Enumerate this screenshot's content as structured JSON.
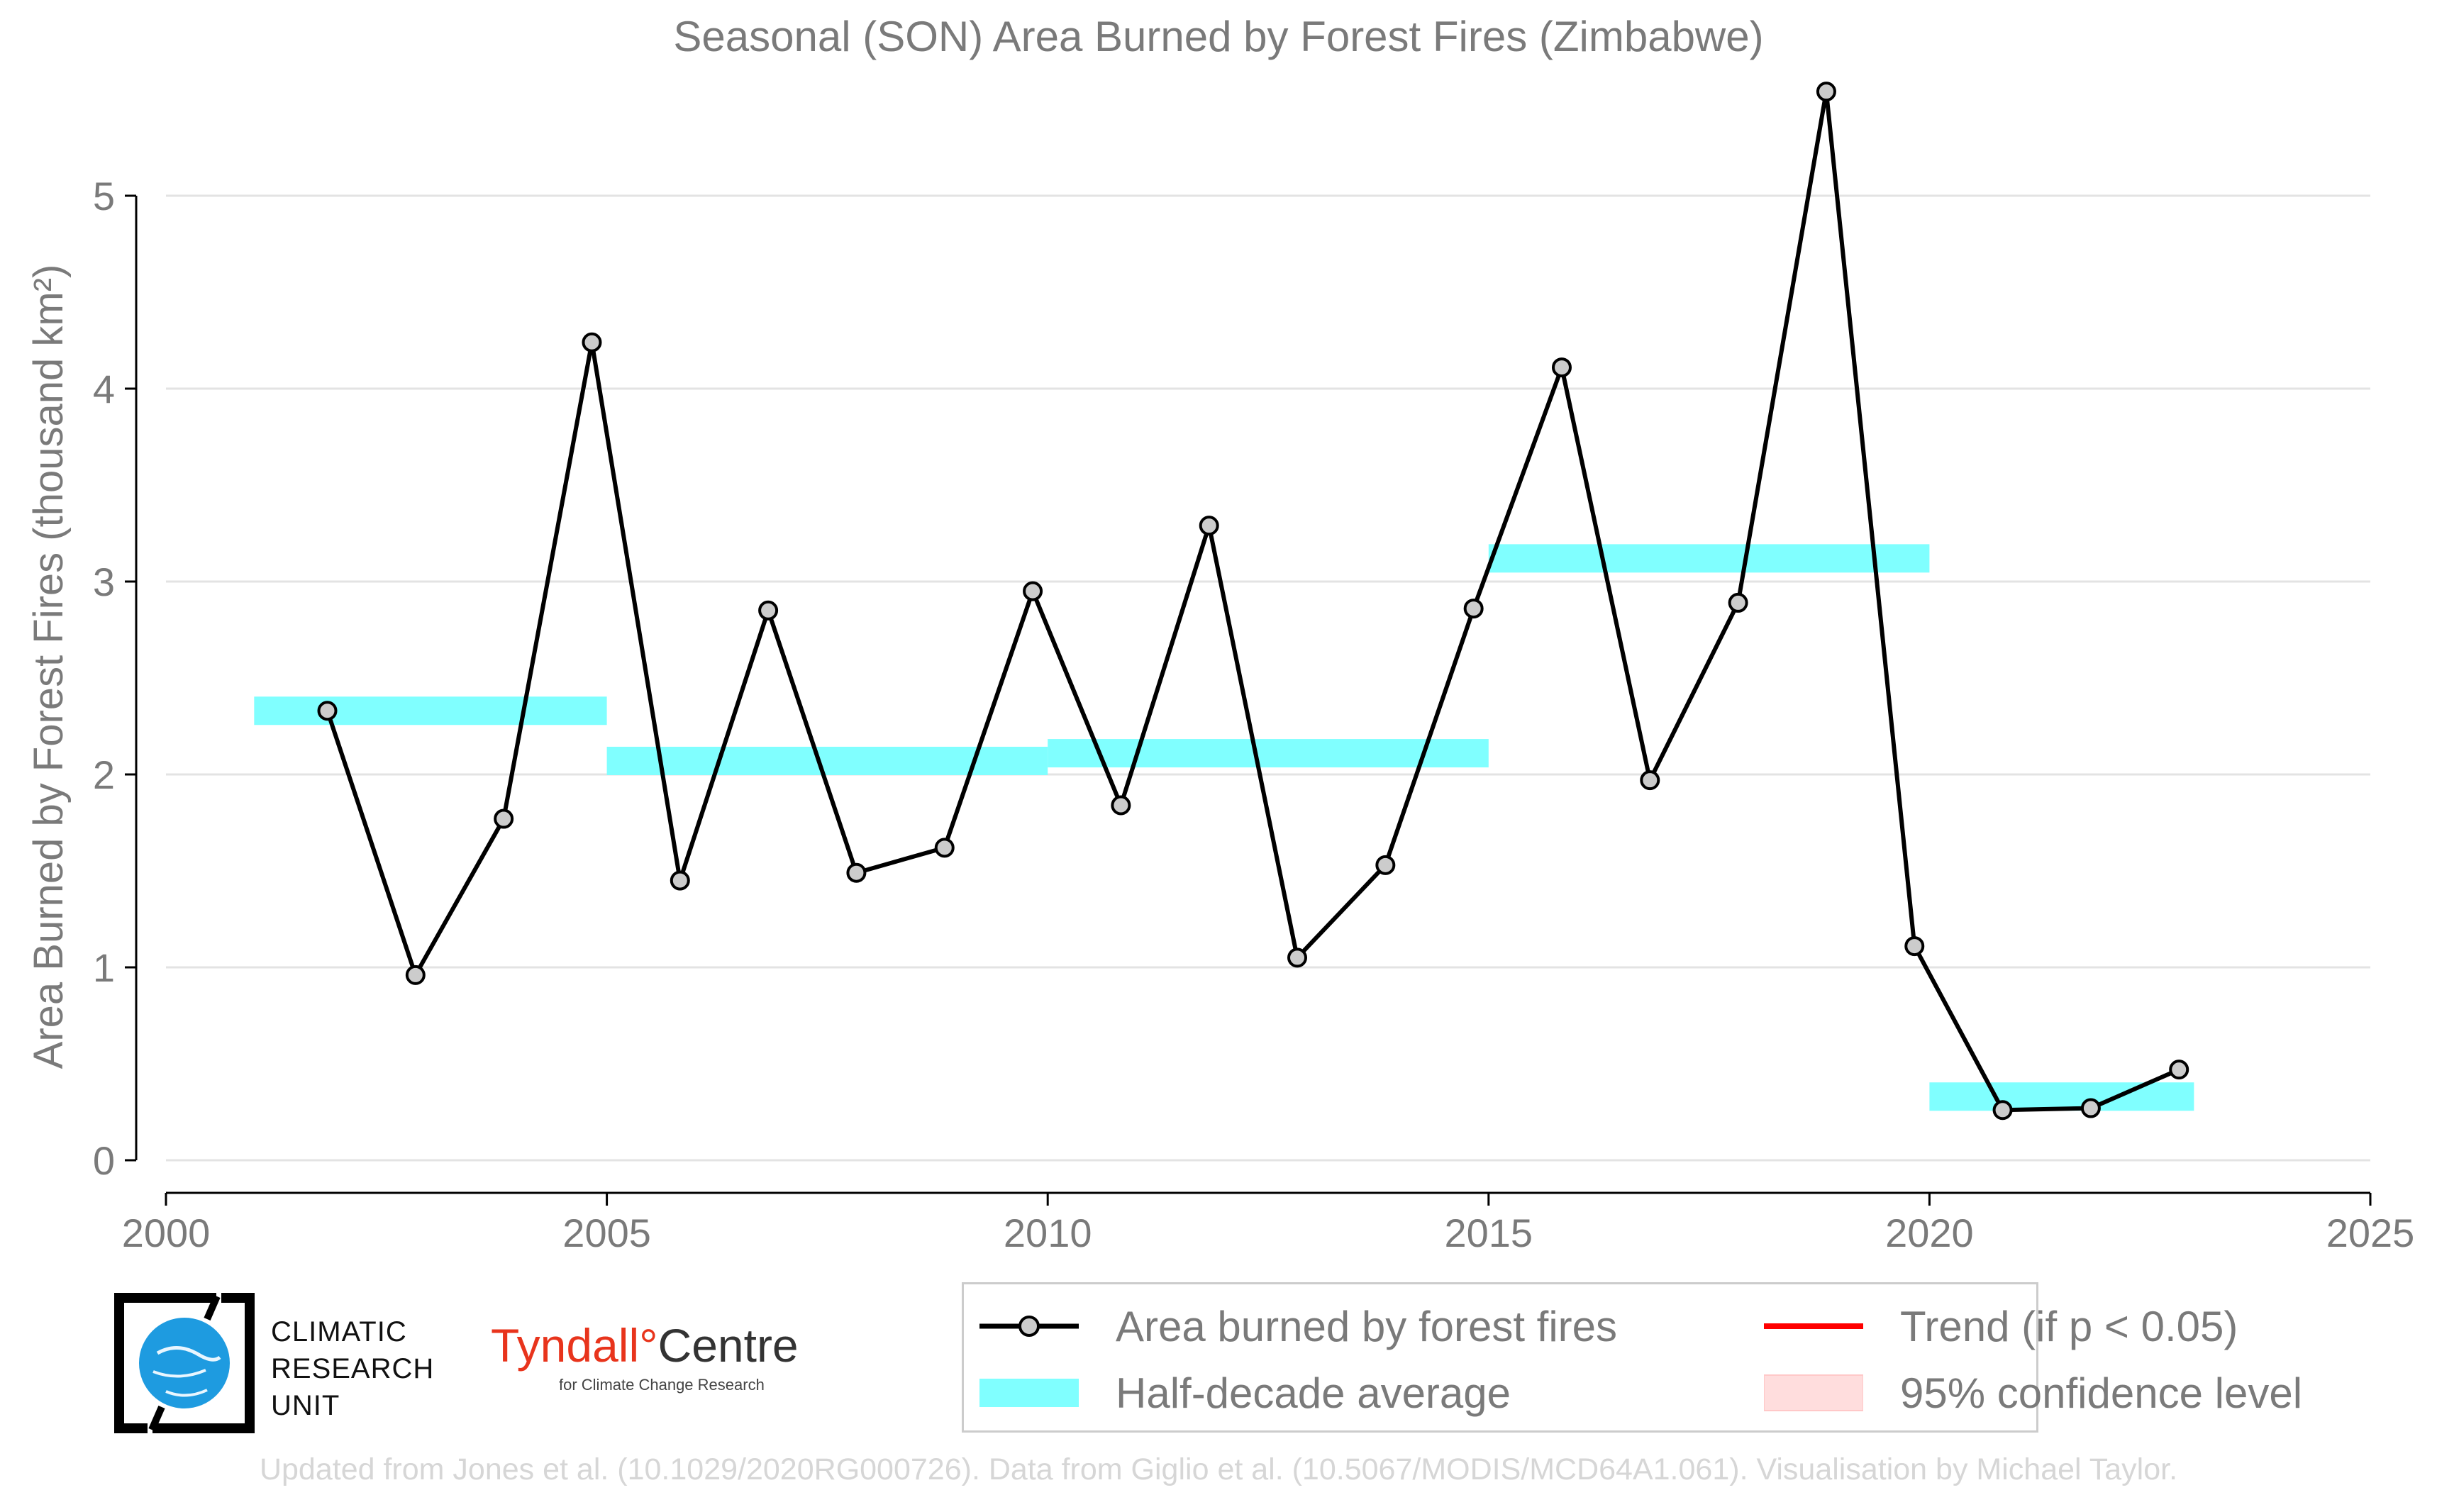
{
  "chart_data": {
    "type": "line",
    "title": "Seasonal (SON) Area Burned by Forest Fires (Zimbabwe)",
    "xlabel": "",
    "ylabel": "Area Burned by Forest Fires (thousand km²)",
    "xlim": [
      2000,
      2025
    ],
    "ylim": [
      0,
      5.5
    ],
    "x_ticks": [
      2000,
      2005,
      2010,
      2015,
      2020,
      2025
    ],
    "y_ticks": [
      0,
      1,
      2,
      3,
      4,
      5
    ],
    "grid": "horizontal",
    "legend_position": "bottom-right",
    "series": [
      {
        "name": "Area burned by forest fires",
        "color": "#000000",
        "marker_color": "#cccccc",
        "x": [
          2001.83,
          2002.83,
          2003.83,
          2004.83,
          2005.83,
          2006.83,
          2007.83,
          2008.83,
          2009.83,
          2010.83,
          2011.83,
          2012.83,
          2013.83,
          2014.83,
          2015.83,
          2016.83,
          2017.83,
          2018.83,
          2019.83,
          2020.83,
          2021.83,
          2022.83
        ],
        "y": [
          2.33,
          0.96,
          1.77,
          4.24,
          1.45,
          2.85,
          1.49,
          1.62,
          2.95,
          1.84,
          3.29,
          1.05,
          1.53,
          2.86,
          4.11,
          1.97,
          2.89,
          5.54,
          1.11,
          0.26,
          0.27,
          0.47
        ]
      }
    ],
    "half_decade_averages": {
      "name": "Half-decade average",
      "color": "#80ffff",
      "segments": [
        {
          "x_start": 2001,
          "x_end": 2005,
          "value": 2.33
        },
        {
          "x_start": 2005,
          "x_end": 2010,
          "value": 2.07
        },
        {
          "x_start": 2010,
          "x_end": 2015,
          "value": 2.11
        },
        {
          "x_start": 2015,
          "x_end": 2020,
          "value": 3.12
        },
        {
          "x_start": 2020,
          "x_end": 2023,
          "value": 0.33
        }
      ]
    },
    "trend": {
      "name": "Trend (if p < 0.05)",
      "color": "#ff0000"
    },
    "confidence": {
      "name": "95% confidence level",
      "color": "#ffdddd"
    }
  },
  "logos": {
    "cru_lines": [
      "CLIMATIC",
      "RESEARCH",
      "UNIT"
    ],
    "tyndall_name": "Tyndall",
    "tyndall_degree": "°",
    "tyndall_centre": "Centre",
    "tyndall_sub": "for Climate Change Research"
  },
  "legend": {
    "line_label": "Area burned by forest fires",
    "avg_label": "Half-decade average",
    "trend_label": "Trend (if p < 0.05)",
    "ci_label": "95% confidence level"
  },
  "footer": "Updated from Jones et al. (10.1029/2020RG000726). Data from Giglio et al. (10.5067/MODIS/MCD64A1.061). Visualisation by Michael Taylor."
}
